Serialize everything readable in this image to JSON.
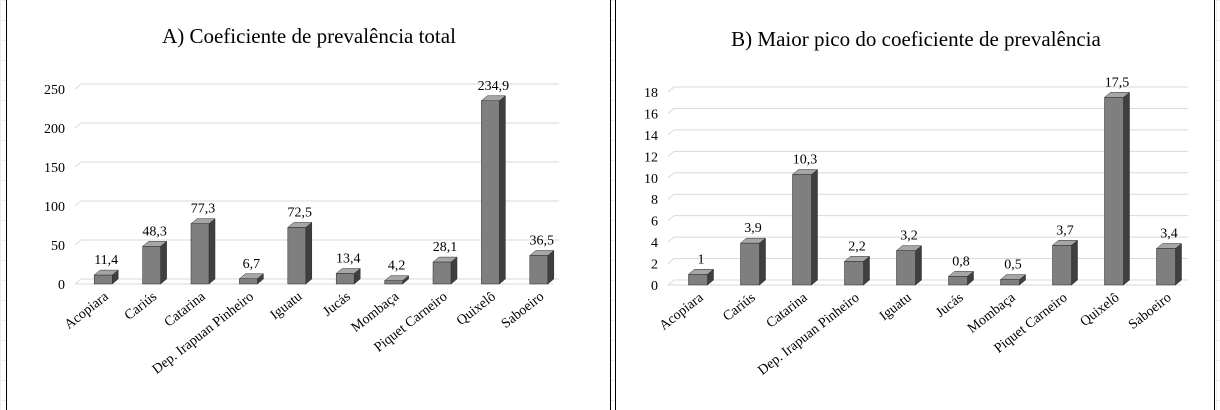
{
  "chart_data": [
    {
      "type": "bar",
      "title": "A) Coeficiente de prevalência total",
      "categories": [
        "Acopiara",
        "Cariús",
        "Catarina",
        "Dep. Irapuan Pinheiro",
        "Iguatu",
        "Jucás",
        "Mombaça",
        "Piquet Carneiro",
        "Quixelô",
        "Saboeiro"
      ],
      "values": [
        11.4,
        48.3,
        77.3,
        6.7,
        72.5,
        13.4,
        4.2,
        28.1,
        234.9,
        36.5
      ],
      "value_labels": [
        "11,4",
        "48,3",
        "77,3",
        "6,7",
        "72,5",
        "13,4",
        "4,2",
        "28,1",
        "234,9",
        "36,5"
      ],
      "ylim": [
        0,
        250
      ],
      "yticks": [
        0,
        50,
        100,
        150,
        200,
        250
      ],
      "grid": true,
      "bar_color": "#7f7f7f"
    },
    {
      "type": "bar",
      "title": "B) Maior pico do coeficiente de prevalência",
      "categories": [
        "Acopiara",
        "Cariús",
        "Catarina",
        "Dep. Irapuan Pinheiro",
        "Iguatu",
        "Jucás",
        "Mombaça",
        "Piquet Carneiro",
        "Quixelô",
        "Saboeiro"
      ],
      "values": [
        1,
        3.9,
        10.3,
        2.2,
        3.2,
        0.8,
        0.5,
        3.7,
        17.5,
        3.4
      ],
      "value_labels": [
        "1",
        "3,9",
        "10,3",
        "2,2",
        "3,2",
        "0,8",
        "0,5",
        "3,7",
        "17,5",
        "3,4"
      ],
      "ylim": [
        0,
        18
      ],
      "yticks": [
        0,
        2,
        4,
        6,
        8,
        10,
        12,
        14,
        16,
        18
      ],
      "grid": true,
      "bar_color": "#7f7f7f"
    }
  ]
}
